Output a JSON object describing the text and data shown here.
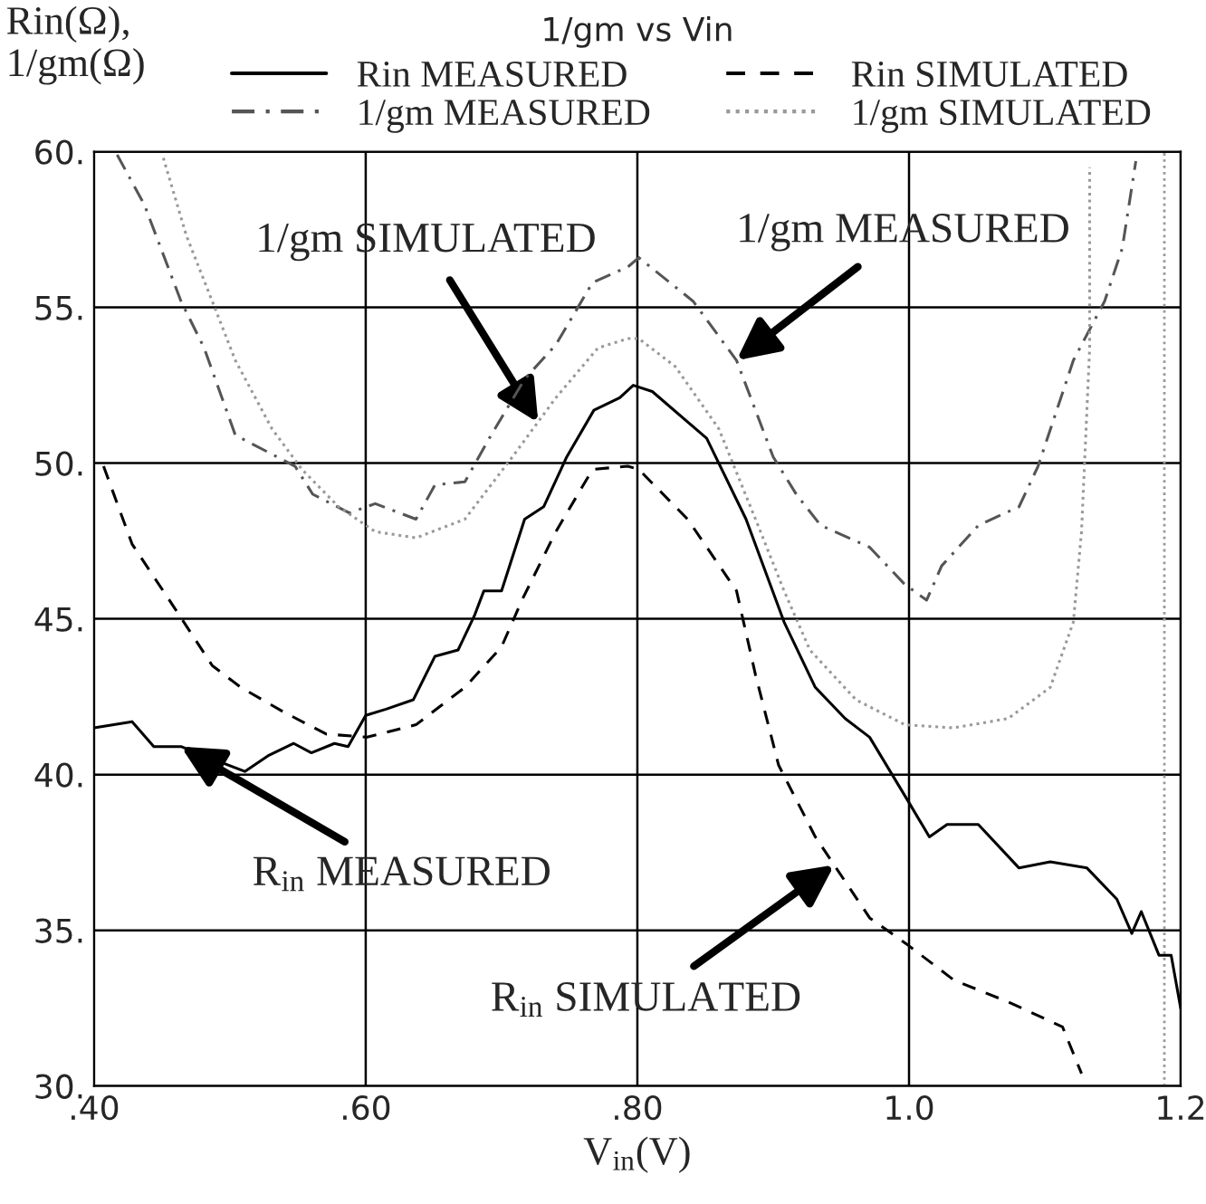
{
  "chart_data": {
    "type": "line",
    "title": "1/gm vs Vin",
    "xlabel": "V$_{in}$(V)",
    "ylabel": "Rin(Ω),\n1/gm(Ω)",
    "series": [
      {
        "name": "Rin MEASURED",
        "color": "#000000",
        "line_style": "solid",
        "x": [
          0.4,
          0.428,
          0.444,
          0.464,
          0.487,
          0.511,
          0.528,
          0.547,
          0.56,
          0.577,
          0.587,
          0.6,
          0.615,
          0.635,
          0.651,
          0.668,
          0.68,
          0.687,
          0.7,
          0.717,
          0.731,
          0.748,
          0.768,
          0.787,
          0.797,
          0.811,
          0.851,
          0.88,
          0.908,
          0.931,
          0.953,
          0.971,
          1.0,
          1.015,
          1.028,
          1.051,
          1.081,
          1.104,
          1.131,
          1.153,
          1.164,
          1.171,
          1.184,
          1.193,
          1.2
        ],
        "values": [
          41.5,
          41.7,
          40.9,
          40.9,
          40.5,
          40.1,
          40.6,
          41.0,
          40.7,
          41.0,
          40.9,
          41.9,
          42.1,
          42.4,
          43.8,
          44.0,
          45.1,
          45.9,
          45.9,
          48.2,
          48.6,
          50.2,
          51.7,
          52.1,
          52.5,
          52.3,
          50.8,
          48.2,
          44.9,
          42.8,
          41.8,
          41.2,
          39.1,
          38.0,
          38.4,
          38.4,
          37.0,
          37.2,
          37.0,
          36.0,
          34.9,
          35.6,
          34.2,
          34.2,
          32.5
        ]
      },
      {
        "name": "1/gm MEASURED",
        "color": "#555555",
        "line_style": "dashdot",
        "x": [
          0.417,
          0.437,
          0.464,
          0.481,
          0.504,
          0.548,
          0.561,
          0.588,
          0.607,
          0.637,
          0.651,
          0.673,
          0.691,
          0.717,
          0.74,
          0.767,
          0.793,
          0.801,
          0.841,
          0.873,
          0.9,
          0.917,
          0.935,
          0.971,
          0.997,
          1.013,
          1.024,
          1.051,
          1.081,
          1.095,
          1.121,
          1.144,
          1.157,
          1.167
        ],
        "values": [
          59.9,
          58.3,
          55.2,
          53.7,
          50.9,
          49.9,
          49.0,
          48.4,
          48.7,
          48.2,
          49.3,
          49.4,
          50.8,
          52.7,
          53.8,
          55.8,
          56.3,
          56.6,
          55.2,
          53.3,
          50.2,
          49.0,
          48.0,
          47.3,
          46.1,
          45.6,
          46.7,
          48.0,
          48.6,
          49.9,
          53.3,
          55.2,
          56.9,
          59.7
        ]
      },
      {
        "name": "Rin SIMULATED",
        "color": "#000000",
        "line_style": "dashed",
        "x": [
          0.407,
          0.428,
          0.46,
          0.487,
          0.508,
          0.54,
          0.571,
          0.601,
          0.637,
          0.673,
          0.7,
          0.715,
          0.74,
          0.767,
          0.793,
          0.801,
          0.837,
          0.873,
          0.887,
          0.904,
          0.931,
          0.971,
          1.0,
          1.033,
          1.073,
          1.113,
          1.127
        ],
        "values": [
          49.9,
          47.4,
          45.3,
          43.5,
          42.8,
          42.0,
          41.3,
          41.2,
          41.6,
          42.8,
          44.1,
          45.6,
          47.8,
          49.8,
          49.9,
          49.8,
          48.2,
          45.9,
          43.2,
          40.3,
          38.0,
          35.4,
          34.5,
          33.4,
          32.7,
          31.9,
          30.4
        ]
      },
      {
        "name": "1/gm SIMULATED",
        "color": "#999999",
        "line_style": "dotted",
        "x": [
          0.451,
          0.468,
          0.487,
          0.504,
          0.531,
          0.553,
          0.58,
          0.607,
          0.637,
          0.673,
          0.708,
          0.74,
          0.771,
          0.793,
          0.801,
          0.828,
          0.86,
          0.887,
          0.908,
          0.927,
          0.961,
          0.997,
          1.033,
          1.073,
          1.104,
          1.121,
          1.127,
          1.133,
          1.133
        ],
        "values": [
          59.8,
          57.3,
          55.2,
          53.3,
          51.1,
          49.8,
          48.6,
          47.8,
          47.6,
          48.2,
          50.2,
          52.1,
          53.7,
          54.0,
          54.0,
          53.1,
          51.1,
          48.2,
          45.9,
          44.0,
          42.4,
          41.6,
          41.5,
          41.8,
          42.8,
          44.9,
          47.8,
          53.7,
          59.5
        ]
      }
    ],
    "ref_lines": [
      {
        "axis": "x",
        "value": 1.188,
        "color": "#999999",
        "line_style": "dotted"
      }
    ],
    "annotations": [
      {
        "text": "1/gm SIMULATED",
        "x": 0.727,
        "y": 51.3
      },
      {
        "text": "1/gm MEASURED",
        "x": 0.873,
        "y": 53.3
      },
      {
        "text": "R$_{in}$ MEASURED",
        "x": 0.464,
        "y": 40.9
      },
      {
        "text": "R$_{in}$ SIMULATED",
        "x": 0.945,
        "y": 37.1
      }
    ],
    "xlim": [
      0.4,
      1.2
    ],
    "ylim": [
      30,
      60
    ],
    "xticks": [
      {
        "value": 0.4,
        "label": ".40"
      },
      {
        "value": 0.6,
        "label": ".60"
      },
      {
        "value": 0.8,
        "label": ".80"
      },
      {
        "value": 1.0,
        "label": "1.0"
      },
      {
        "value": 1.2,
        "label": "1.2"
      }
    ],
    "yticks": [
      {
        "value": 30,
        "label": "30."
      },
      {
        "value": 35,
        "label": "35."
      },
      {
        "value": 40,
        "label": "40."
      },
      {
        "value": 45,
        "label": "45."
      },
      {
        "value": 50,
        "label": "50."
      },
      {
        "value": 55,
        "label": "55."
      },
      {
        "value": 60,
        "label": "60."
      }
    ],
    "grid": true,
    "legend": "top",
    "marker": "none"
  }
}
